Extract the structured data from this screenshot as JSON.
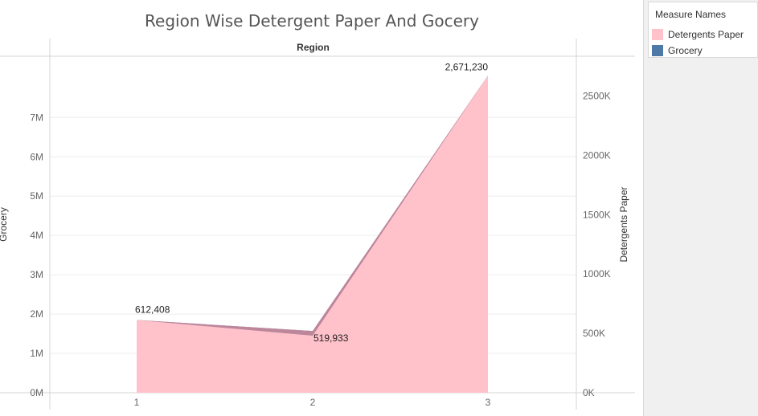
{
  "chart_data": {
    "type": "area",
    "title": "Region Wise Detergent Paper And Gocery",
    "header_label": "Region",
    "categories": [
      "1",
      "2",
      "3"
    ],
    "series": [
      {
        "name": "Detergents Paper",
        "axis": "right",
        "values": [
          612408,
          519933,
          2671230
        ],
        "color": "#ffc2ca"
      },
      {
        "name": "Grocery",
        "axis": "left",
        "values": [
          1680000,
          1450000,
          7500000
        ],
        "color": "#4e79a7"
      }
    ],
    "data_labels": [
      "612,408",
      "519,933",
      "2,671,230"
    ],
    "y_left": {
      "label": "Grocery",
      "ticks": [
        "0M",
        "1M",
        "2M",
        "3M",
        "4M",
        "5M",
        "6M",
        "7M"
      ],
      "tick_values": [
        0,
        1000000,
        2000000,
        3000000,
        4000000,
        5000000,
        6000000,
        7000000
      ],
      "range": [
        0,
        8150000
      ]
    },
    "y_right": {
      "label": "Detergents Paper",
      "ticks": [
        "0K",
        "500K",
        "1000K",
        "1500K",
        "2000K",
        "2500K"
      ],
      "tick_values": [
        0,
        500000,
        1000000,
        1500000,
        2000000,
        2500000
      ],
      "range": [
        0,
        2700000
      ]
    },
    "grid": true,
    "legend_position": "right"
  },
  "legend": {
    "title": "Measure Names",
    "items": [
      {
        "label": "Detergents Paper",
        "color": "#ffc2ca"
      },
      {
        "label": "Grocery",
        "color": "#4e79a7"
      }
    ]
  }
}
